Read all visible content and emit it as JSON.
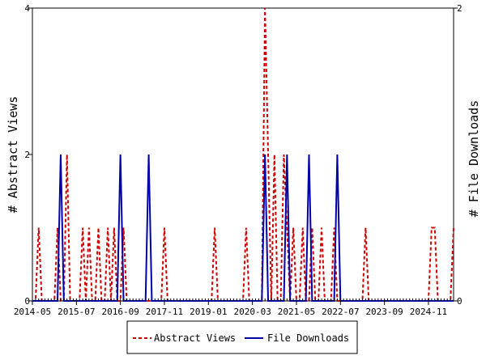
{
  "chart_data": {
    "type": "line",
    "x_start": "2014-05",
    "x_end": "2025-07",
    "x_tick_labels": [
      "2014-05",
      "2015-07",
      "2016-09",
      "2017-11",
      "2019-01",
      "2020-03",
      "2021-05",
      "2022-07",
      "2023-09",
      "2024-11"
    ],
    "left_axis": {
      "label": "# Abstract Views",
      "ticks": [
        "0",
        "2",
        "4"
      ],
      "ylim": [
        0,
        4
      ]
    },
    "right_axis": {
      "label": "# File Downloads",
      "ticks": [
        "0",
        "2"
      ],
      "ylim": [
        0,
        2
      ]
    },
    "legend_position": "bottom",
    "grid": false,
    "series": [
      {
        "name": "Abstract Views",
        "axis": "left",
        "color": "#cc0000",
        "style": "dashed",
        "points": [
          [
            "2014-06",
            0
          ],
          [
            "2014-07",
            1
          ],
          [
            "2014-08",
            0
          ],
          [
            "2015-01",
            1
          ],
          [
            "2015-02",
            0
          ],
          [
            "2015-04",
            2
          ],
          [
            "2015-05",
            0
          ],
          [
            "2015-09",
            1
          ],
          [
            "2015-10",
            0
          ],
          [
            "2015-11",
            1
          ],
          [
            "2015-12",
            0
          ],
          [
            "2016-02",
            1
          ],
          [
            "2016-03",
            0
          ],
          [
            "2016-05",
            1
          ],
          [
            "2016-07",
            1
          ],
          [
            "2016-08",
            0
          ],
          [
            "2016-10",
            1
          ],
          [
            "2016-11",
            0
          ],
          [
            "2017-11",
            1
          ],
          [
            "2017-12",
            0
          ],
          [
            "2019-03",
            1
          ],
          [
            "2019-04",
            0
          ],
          [
            "2020-01",
            1
          ],
          [
            "2020-02",
            0
          ],
          [
            "2020-07",
            4
          ],
          [
            "2020-08",
            2
          ],
          [
            "2020-09",
            0
          ],
          [
            "2020-10",
            2
          ],
          [
            "2020-11",
            0
          ],
          [
            "2021-01",
            2
          ],
          [
            "2021-02",
            1
          ],
          [
            "2021-03",
            0
          ],
          [
            "2021-04",
            1
          ],
          [
            "2021-05",
            0
          ],
          [
            "2021-07",
            1
          ],
          [
            "2021-08",
            0
          ],
          [
            "2021-10",
            1
          ],
          [
            "2021-11",
            0
          ],
          [
            "2022-01",
            1
          ],
          [
            "2022-02",
            0
          ],
          [
            "2022-05",
            1
          ],
          [
            "2022-06",
            0
          ],
          [
            "2023-03",
            1
          ],
          [
            "2023-04",
            0
          ],
          [
            "2024-12",
            1
          ],
          [
            "2025-01",
            1
          ],
          [
            "2025-07",
            1
          ]
        ]
      },
      {
        "name": "File Downloads",
        "axis": "right",
        "color": "#0000aa",
        "style": "solid",
        "points": [
          [
            "2015-02",
            1
          ],
          [
            "2015-03",
            0
          ],
          [
            "2016-09",
            1
          ],
          [
            "2016-10",
            0
          ],
          [
            "2017-06",
            1
          ],
          [
            "2017-07",
            0
          ],
          [
            "2020-07",
            1
          ],
          [
            "2020-08",
            0
          ],
          [
            "2021-02",
            1
          ],
          [
            "2021-03",
            0
          ],
          [
            "2021-09",
            1
          ],
          [
            "2021-10",
            0
          ],
          [
            "2022-06",
            1
          ],
          [
            "2022-07",
            0
          ]
        ]
      }
    ]
  }
}
